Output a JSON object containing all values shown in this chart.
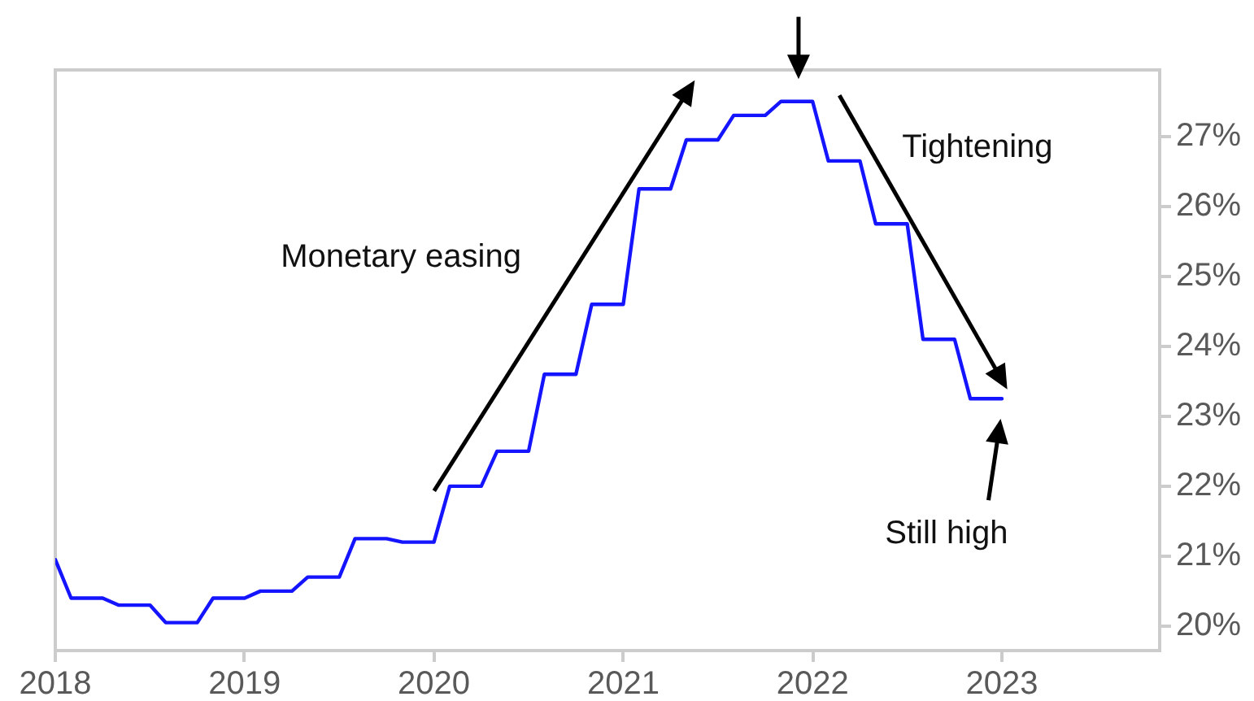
{
  "chart_data": {
    "type": "line",
    "x": [
      "2018-01",
      "2018-02",
      "2018-03",
      "2018-04",
      "2018-05",
      "2018-06",
      "2018-07",
      "2018-08",
      "2018-09",
      "2018-10",
      "2018-11",
      "2018-12",
      "2019-01",
      "2019-02",
      "2019-03",
      "2019-04",
      "2019-05",
      "2019-06",
      "2019-07",
      "2019-08",
      "2019-09",
      "2019-10",
      "2019-11",
      "2019-12",
      "2020-01",
      "2020-02",
      "2020-03",
      "2020-04",
      "2020-05",
      "2020-06",
      "2020-07",
      "2020-08",
      "2020-09",
      "2020-10",
      "2020-11",
      "2020-12",
      "2021-01",
      "2021-02",
      "2021-03",
      "2021-04",
      "2021-05",
      "2021-06",
      "2021-07",
      "2021-08",
      "2021-09",
      "2021-10",
      "2021-11",
      "2021-12",
      "2022-01",
      "2022-02",
      "2022-03",
      "2022-04",
      "2022-05",
      "2022-06",
      "2022-07",
      "2022-08",
      "2022-09",
      "2022-10",
      "2022-11",
      "2022-12",
      "2023-01"
    ],
    "series": [
      {
        "color": "#1414ff",
        "values": [
          20.95,
          20.4,
          20.4,
          20.4,
          20.3,
          20.3,
          20.3,
          20.05,
          20.05,
          20.05,
          20.4,
          20.4,
          20.4,
          20.5,
          20.5,
          20.5,
          20.7,
          20.7,
          20.7,
          21.25,
          21.25,
          21.25,
          21.2,
          21.2,
          21.2,
          22.0,
          22.0,
          22.0,
          22.5,
          22.5,
          22.5,
          23.6,
          23.6,
          23.6,
          24.6,
          24.6,
          24.6,
          26.25,
          26.25,
          26.25,
          26.95,
          26.95,
          26.95,
          27.3,
          27.3,
          27.3,
          27.5,
          27.5,
          27.5,
          26.65,
          26.65,
          26.65,
          25.75,
          25.75,
          25.75,
          24.1,
          24.1,
          24.1,
          23.25,
          23.25,
          23.25
        ]
      }
    ],
    "xlim": [
      "2018-01",
      "2023-11"
    ],
    "xticks": [
      "2018",
      "2019",
      "2020",
      "2021",
      "2022",
      "2023"
    ],
    "ylim": [
      19.65,
      27.95
    ],
    "yticks": [
      {
        "value": 20,
        "label": "20%"
      },
      {
        "value": 21,
        "label": "21%"
      },
      {
        "value": 22,
        "label": "22%"
      },
      {
        "value": 23,
        "label": "23%"
      },
      {
        "value": 24,
        "label": "24%"
      },
      {
        "value": 25,
        "label": "25%"
      },
      {
        "value": 26,
        "label": "26%"
      },
      {
        "value": 27,
        "label": "27%"
      }
    ],
    "marker": "none",
    "line_style": "solid",
    "annotations": [
      "Monetary easing",
      "Tightening",
      "Still high"
    ]
  }
}
